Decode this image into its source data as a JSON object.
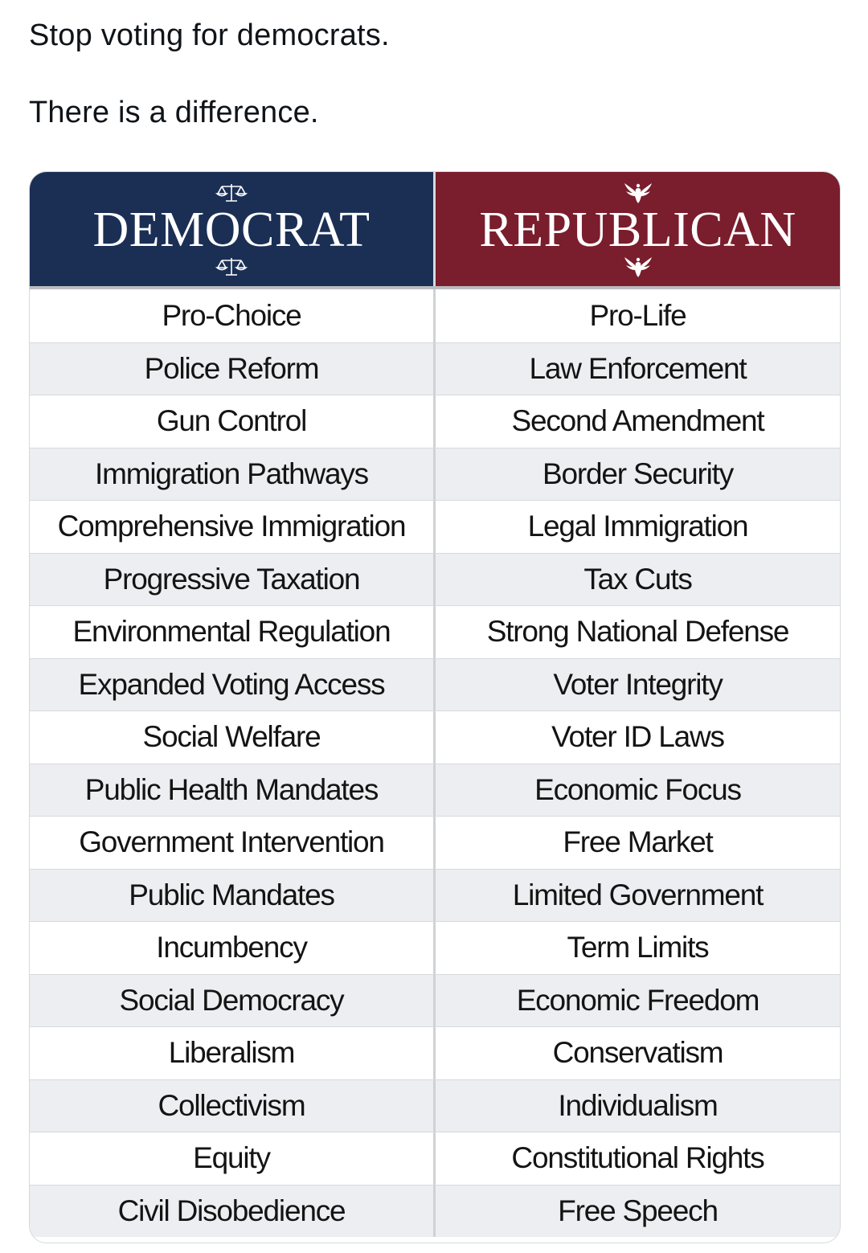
{
  "post": {
    "line1": "Stop voting for democrats.",
    "line2": "There is a difference."
  },
  "table": {
    "left_header": "DEMOCRAT",
    "right_header": "REPUBLICAN",
    "left_icon": "scales-of-justice-icon",
    "right_icon": "eagle-icon",
    "left_color": "#1b2f55",
    "right_color": "#7a1d2d",
    "rows": [
      {
        "left": "Pro-Choice",
        "right": "Pro-Life"
      },
      {
        "left": "Police Reform",
        "right": "Law Enforcement"
      },
      {
        "left": "Gun Control",
        "right": "Second Amendment"
      },
      {
        "left": "Immigration Pathways",
        "right": "Border Security"
      },
      {
        "left": "Comprehensive Immigration",
        "right": "Legal Immigration"
      },
      {
        "left": "Progressive Taxation",
        "right": "Tax Cuts"
      },
      {
        "left": "Environmental Regulation",
        "right": "Strong National Defense"
      },
      {
        "left": "Expanded Voting Access",
        "right": "Voter Integrity"
      },
      {
        "left": "Social Welfare",
        "right": "Voter ID Laws"
      },
      {
        "left": "Public Health Mandates",
        "right": "Economic Focus"
      },
      {
        "left": "Government Intervention",
        "right": "Free Market"
      },
      {
        "left": "Public Mandates",
        "right": "Limited Government"
      },
      {
        "left": "Incumbency",
        "right": "Term Limits"
      },
      {
        "left": "Social Democracy",
        "right": "Economic Freedom"
      },
      {
        "left": "Liberalism",
        "right": "Conservatism"
      },
      {
        "left": "Collectivism",
        "right": "Individualism"
      },
      {
        "left": "Equity",
        "right": "Constitutional Rights"
      },
      {
        "left": "Civil Disobedience",
        "right": "Free Speech"
      }
    ]
  }
}
